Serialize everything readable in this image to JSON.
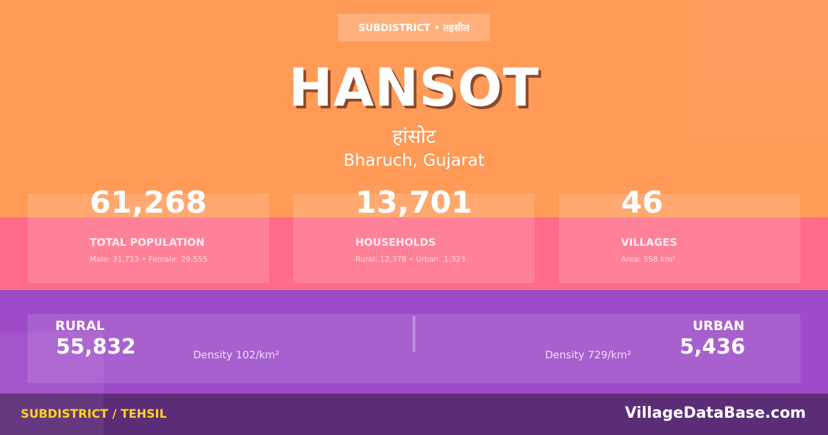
{
  "colors": {
    "top": "#ff9a57",
    "middle": "#ff6b88",
    "lower": "#9d4bc8",
    "footer": "#5c2d77",
    "accent": "#ffd21f"
  },
  "badge": "SUBDISTRICT • तहसील",
  "title": "HANSOT",
  "title_hindi": "हांसोट",
  "location": "Bharuch, Gujarat",
  "stats": [
    {
      "value": "61,268",
      "label": "TOTAL POPULATION",
      "sub": "Male: 31,713 • Female: 29,555"
    },
    {
      "value": "13,701",
      "label": "HOUSEHOLDS",
      "sub": "Rural: 12,378 • Urban: 1,323"
    },
    {
      "value": "46",
      "label": "VILLAGES",
      "sub": "Area: 558 km²"
    }
  ],
  "rural": {
    "label": "RURAL",
    "value": "55,832",
    "density": "Density 102/km²"
  },
  "urban": {
    "label": "URBAN",
    "value": "5,436",
    "density": "Density 729/km²"
  },
  "footer": {
    "left": "SUBDISTRICT / TEHSIL",
    "right": "VillageDataBase.com"
  }
}
